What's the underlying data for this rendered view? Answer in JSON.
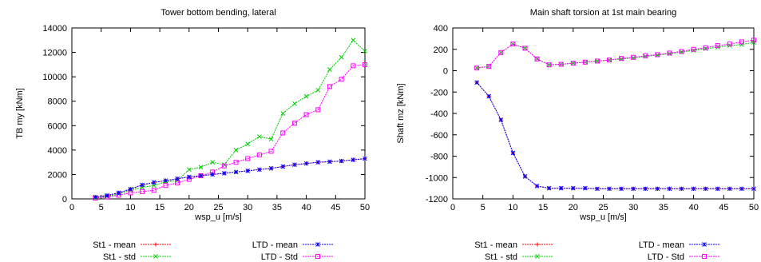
{
  "chart_data": [
    {
      "type": "line",
      "title": "Tower bottom bending, lateral",
      "xlabel": "wsp_u [m/s]",
      "ylabel": "TB my [kNm]",
      "xlim": [
        0,
        50
      ],
      "ylim": [
        0,
        14000
      ],
      "xticks": [
        0,
        5,
        10,
        15,
        20,
        25,
        30,
        35,
        40,
        45,
        50
      ],
      "yticks": [
        0,
        2000,
        4000,
        6000,
        8000,
        10000,
        12000,
        14000
      ],
      "grid": false,
      "legend_placement": "below",
      "x": [
        4,
        6,
        8,
        10,
        12,
        14,
        16,
        18,
        20,
        22,
        24,
        26,
        28,
        30,
        32,
        34,
        36,
        38,
        40,
        42,
        44,
        46,
        48,
        50
      ],
      "series": [
        {
          "name": "St1 - mean",
          "color": "#ff0000",
          "marker": "+",
          "values": [
            150,
            280,
            500,
            800,
            1150,
            1350,
            1500,
            1650,
            1800,
            1900,
            2000,
            2100,
            2200,
            2300,
            2400,
            2500,
            2650,
            2800,
            2900,
            3000,
            3050,
            3100,
            3200,
            3300
          ]
        },
        {
          "name": "St1 - std",
          "color": "#00cc00",
          "marker": "x",
          "values": [
            80,
            200,
            400,
            700,
            950,
            1100,
            1400,
            1500,
            2400,
            2600,
            3000,
            2800,
            4000,
            4500,
            5100,
            4900,
            7000,
            7800,
            8400,
            8900,
            10600,
            11600,
            13000,
            12100
          ]
        },
        {
          "name": "LTD - mean",
          "color": "#0000ff",
          "marker": "*",
          "values": [
            150,
            280,
            500,
            800,
            1150,
            1350,
            1500,
            1650,
            1800,
            1900,
            2000,
            2100,
            2200,
            2300,
            2400,
            2500,
            2650,
            2800,
            2900,
            3000,
            3050,
            3100,
            3200,
            3300
          ]
        },
        {
          "name": "LTD - Std",
          "color": "#ff00ff",
          "marker": "square",
          "values": [
            60,
            150,
            300,
            500,
            600,
            700,
            1100,
            1300,
            1600,
            1900,
            2200,
            2700,
            3000,
            3300,
            3600,
            3900,
            5400,
            6200,
            6900,
            7300,
            9200,
            9800,
            10900,
            11000
          ]
        }
      ]
    },
    {
      "type": "line",
      "title": "Main shaft torsion at 1st main bearing",
      "xlabel": "wsp_u [m/s]",
      "ylabel": "Shaft mz [kNm]",
      "xlim": [
        0,
        50
      ],
      "ylim": [
        -1200,
        400
      ],
      "xticks": [
        0,
        5,
        10,
        15,
        20,
        25,
        30,
        35,
        40,
        45,
        50
      ],
      "yticks": [
        -1200,
        -1000,
        -800,
        -600,
        -400,
        -200,
        0,
        200,
        400
      ],
      "grid": false,
      "legend_placement": "below",
      "x": [
        4,
        6,
        8,
        10,
        12,
        14,
        16,
        18,
        20,
        22,
        24,
        26,
        28,
        30,
        32,
        34,
        36,
        38,
        40,
        42,
        44,
        46,
        48,
        50
      ],
      "series": [
        {
          "name": "St1 - mean",
          "color": "#ff0000",
          "marker": "+",
          "values": [
            -110,
            -240,
            -460,
            -770,
            -990,
            -1080,
            -1100,
            -1100,
            -1100,
            -1100,
            -1105,
            -1105,
            -1105,
            -1105,
            -1105,
            -1105,
            -1105,
            -1105,
            -1105,
            -1105,
            -1105,
            -1105,
            -1105,
            -1105
          ]
        },
        {
          "name": "St1 - std",
          "color": "#00cc00",
          "marker": "x",
          "values": [
            25,
            40,
            170,
            250,
            210,
            110,
            55,
            60,
            70,
            80,
            90,
            100,
            110,
            120,
            135,
            145,
            160,
            175,
            190,
            205,
            220,
            235,
            245,
            265
          ]
        },
        {
          "name": "LTD - mean",
          "color": "#0000ff",
          "marker": "*",
          "values": [
            -110,
            -240,
            -460,
            -770,
            -990,
            -1080,
            -1100,
            -1100,
            -1100,
            -1100,
            -1105,
            -1105,
            -1105,
            -1105,
            -1105,
            -1105,
            -1105,
            -1105,
            -1105,
            -1105,
            -1105,
            -1105,
            -1105,
            -1105
          ]
        },
        {
          "name": "LTD - Std",
          "color": "#ff00ff",
          "marker": "square",
          "values": [
            25,
            40,
            170,
            250,
            210,
            110,
            55,
            60,
            70,
            80,
            90,
            100,
            115,
            125,
            140,
            150,
            165,
            180,
            200,
            215,
            235,
            250,
            270,
            285
          ]
        }
      ]
    }
  ]
}
